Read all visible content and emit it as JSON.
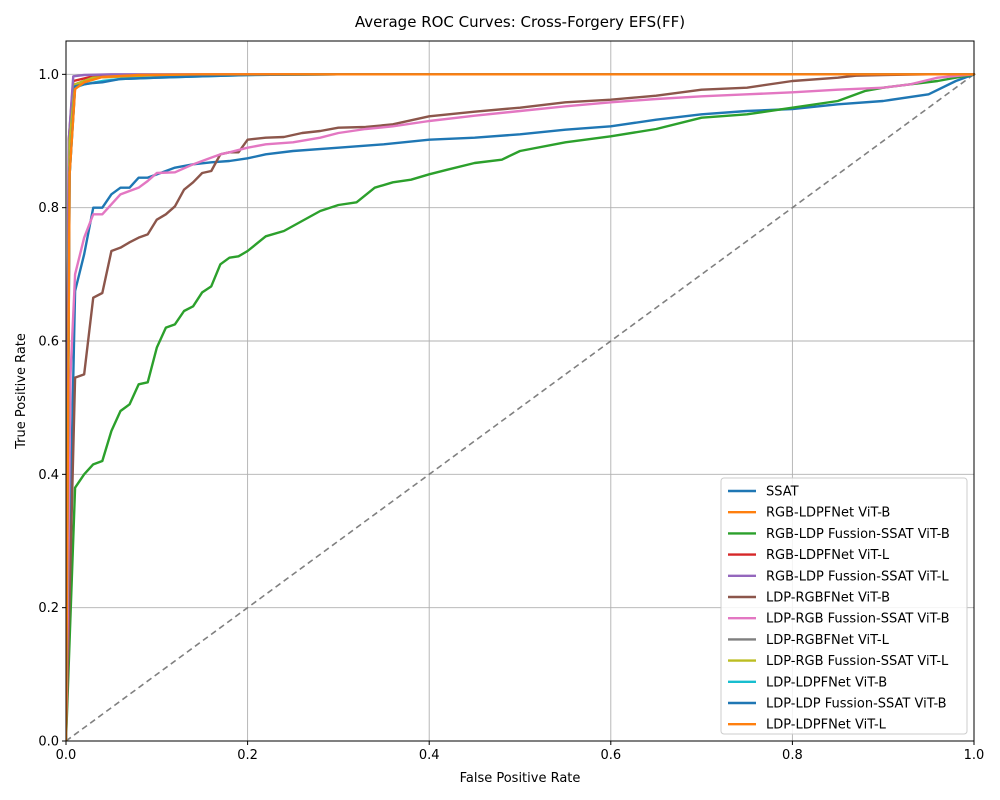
{
  "chart_data": {
    "type": "line",
    "title": "Average ROC Curves: Cross-Forgery EFS(FF)",
    "xlabel": "False Positive Rate",
    "ylabel": "True Positive Rate",
    "xlim": [
      0,
      1
    ],
    "ylim": [
      0,
      1.05
    ],
    "grid": true,
    "legend_position": "lower-right",
    "x_ticks": [
      "0.0",
      "0.2",
      "0.4",
      "0.6",
      "0.8",
      "1.0"
    ],
    "y_ticks": [
      "0.0",
      "0.2",
      "0.4",
      "0.6",
      "0.8",
      "1.0"
    ],
    "diagonal": {
      "x": [
        0,
        1
      ],
      "y": [
        0,
        1
      ],
      "color": "#808080",
      "style": "dashed"
    },
    "series": [
      {
        "name": "SSAT",
        "color": "#1f77b4",
        "x": [
          0,
          0.005,
          0.01,
          0.02,
          0.03,
          0.04,
          0.05,
          0.06,
          0.07,
          0.08,
          0.09,
          0.1,
          0.12,
          0.14,
          0.16,
          0.18,
          0.2,
          0.22,
          0.25,
          0.3,
          0.35,
          0.4,
          0.45,
          0.5,
          0.55,
          0.6,
          0.65,
          0.7,
          0.75,
          0.8,
          0.85,
          0.9,
          0.95,
          0.98,
          1.0
        ],
        "y": [
          0,
          0.35,
          0.675,
          0.73,
          0.8,
          0.8,
          0.82,
          0.83,
          0.83,
          0.845,
          0.845,
          0.85,
          0.86,
          0.865,
          0.868,
          0.87,
          0.874,
          0.88,
          0.885,
          0.89,
          0.895,
          0.902,
          0.905,
          0.91,
          0.917,
          0.922,
          0.932,
          0.94,
          0.945,
          0.948,
          0.955,
          0.96,
          0.97,
          0.99,
          1.0
        ]
      },
      {
        "name": "RGB-LDPFNet ViT-B",
        "color": "#ff7f0e",
        "x": [
          0,
          0.004,
          0.01,
          0.03,
          0.06,
          0.1,
          0.2,
          1.0
        ],
        "y": [
          0,
          0.9,
          0.985,
          0.995,
          0.998,
          0.999,
          1.0,
          1.0
        ]
      },
      {
        "name": "RGB-LDP Fussion-SSAT ViT-B",
        "color": "#2ca02c",
        "x": [
          0,
          0.01,
          0.02,
          0.03,
          0.04,
          0.05,
          0.06,
          0.07,
          0.08,
          0.09,
          0.1,
          0.11,
          0.12,
          0.13,
          0.14,
          0.15,
          0.16,
          0.17,
          0.18,
          0.19,
          0.2,
          0.22,
          0.24,
          0.26,
          0.28,
          0.3,
          0.32,
          0.34,
          0.36,
          0.38,
          0.4,
          0.42,
          0.45,
          0.48,
          0.5,
          0.55,
          0.6,
          0.65,
          0.7,
          0.75,
          0.8,
          0.85,
          0.88,
          0.9,
          0.93,
          0.96,
          1.0
        ],
        "y": [
          0,
          0.38,
          0.4,
          0.415,
          0.42,
          0.465,
          0.495,
          0.505,
          0.535,
          0.538,
          0.59,
          0.62,
          0.625,
          0.645,
          0.652,
          0.673,
          0.682,
          0.715,
          0.725,
          0.727,
          0.735,
          0.757,
          0.765,
          0.78,
          0.795,
          0.804,
          0.808,
          0.83,
          0.838,
          0.842,
          0.85,
          0.857,
          0.867,
          0.872,
          0.885,
          0.898,
          0.907,
          0.918,
          0.935,
          0.94,
          0.95,
          0.96,
          0.975,
          0.98,
          0.985,
          0.99,
          1.0
        ]
      },
      {
        "name": "RGB-LDPFNet ViT-L",
        "color": "#d62728",
        "x": [
          0,
          0.003,
          0.008,
          0.03,
          0.1,
          0.3,
          1.0
        ],
        "y": [
          0,
          0.9,
          0.99,
          0.997,
          0.999,
          1.0,
          1.0
        ]
      },
      {
        "name": "RGB-LDP Fussion-SSAT ViT-L",
        "color": "#9467bd",
        "x": [
          0,
          0.003,
          0.008,
          0.02,
          0.05,
          0.1,
          0.2,
          1.0
        ],
        "y": [
          0,
          0.9,
          0.997,
          0.999,
          1.0,
          1.0,
          1.0,
          1.0
        ]
      },
      {
        "name": "LDP-RGBFNet ViT-B",
        "color": "#8c564b",
        "x": [
          0,
          0.01,
          0.02,
          0.03,
          0.04,
          0.05,
          0.06,
          0.07,
          0.08,
          0.09,
          0.1,
          0.11,
          0.12,
          0.13,
          0.14,
          0.15,
          0.16,
          0.17,
          0.18,
          0.19,
          0.2,
          0.22,
          0.24,
          0.26,
          0.28,
          0.3,
          0.33,
          0.36,
          0.4,
          0.45,
          0.5,
          0.55,
          0.6,
          0.65,
          0.7,
          0.75,
          0.8,
          0.85,
          0.87,
          0.9,
          0.95,
          1.0
        ],
        "y": [
          0,
          0.545,
          0.55,
          0.665,
          0.672,
          0.735,
          0.74,
          0.748,
          0.755,
          0.76,
          0.782,
          0.79,
          0.802,
          0.827,
          0.838,
          0.852,
          0.855,
          0.88,
          0.883,
          0.883,
          0.902,
          0.905,
          0.906,
          0.912,
          0.915,
          0.92,
          0.921,
          0.925,
          0.937,
          0.944,
          0.95,
          0.958,
          0.962,
          0.968,
          0.977,
          0.98,
          0.99,
          0.995,
          0.998,
          0.999,
          1.0,
          1.0
        ]
      },
      {
        "name": "LDP-RGB Fussion-SSAT ViT-B",
        "color": "#e377c2",
        "x": [
          0,
          0.005,
          0.01,
          0.02,
          0.03,
          0.04,
          0.05,
          0.06,
          0.07,
          0.08,
          0.09,
          0.1,
          0.12,
          0.14,
          0.16,
          0.17,
          0.18,
          0.2,
          0.22,
          0.25,
          0.28,
          0.3,
          0.33,
          0.36,
          0.4,
          0.45,
          0.5,
          0.55,
          0.6,
          0.65,
          0.7,
          0.75,
          0.8,
          0.85,
          0.9,
          0.93,
          0.96,
          1.0
        ],
        "y": [
          0,
          0.55,
          0.7,
          0.755,
          0.79,
          0.79,
          0.805,
          0.82,
          0.825,
          0.83,
          0.84,
          0.852,
          0.853,
          0.865,
          0.875,
          0.88,
          0.883,
          0.89,
          0.895,
          0.898,
          0.905,
          0.912,
          0.918,
          0.922,
          0.93,
          0.938,
          0.945,
          0.952,
          0.958,
          0.963,
          0.967,
          0.97,
          0.973,
          0.977,
          0.98,
          0.985,
          0.995,
          1.0
        ]
      },
      {
        "name": "LDP-RGBFNet ViT-L",
        "color": "#7f7f7f",
        "x": [
          0,
          0.004,
          0.01,
          0.03,
          0.1,
          0.3,
          1.0
        ],
        "y": [
          0,
          0.9,
          0.985,
          0.995,
          0.999,
          1.0,
          1.0
        ]
      },
      {
        "name": "LDP-RGB Fussion-SSAT ViT-L",
        "color": "#bcbd22",
        "x": [
          0,
          0.004,
          0.01,
          0.03,
          0.1,
          0.3,
          1.0
        ],
        "y": [
          0,
          0.9,
          0.985,
          0.995,
          0.999,
          1.0,
          1.0
        ]
      },
      {
        "name": "LDP-LDPFNet ViT-B",
        "color": "#17becf",
        "x": [
          0,
          0.004,
          0.01,
          0.02,
          0.04,
          0.06,
          0.1,
          0.15,
          0.2,
          0.3,
          1.0
        ],
        "y": [
          0,
          0.85,
          0.98,
          0.985,
          0.99,
          0.993,
          0.995,
          0.997,
          0.999,
          1.0,
          1.0
        ]
      },
      {
        "name": "LDP-LDP Fussion-SSAT ViT-B",
        "color": "#1f77b4",
        "x": [
          0,
          0.004,
          0.01,
          0.02,
          0.03,
          0.04,
          0.06,
          0.1,
          0.15,
          0.2,
          0.3,
          1.0
        ],
        "y": [
          0,
          0.85,
          0.982,
          0.985,
          0.987,
          0.988,
          0.993,
          0.995,
          0.997,
          0.999,
          1.0,
          1.0
        ]
      },
      {
        "name": "LDP-LDPFNet ViT-L",
        "color": "#ff7f0e",
        "x": [
          0,
          0.004,
          0.01,
          0.02,
          0.04,
          0.08,
          0.15,
          0.3,
          1.0
        ],
        "y": [
          0,
          0.85,
          0.978,
          0.988,
          0.996,
          0.999,
          1.0,
          1.0,
          1.0
        ]
      }
    ]
  }
}
